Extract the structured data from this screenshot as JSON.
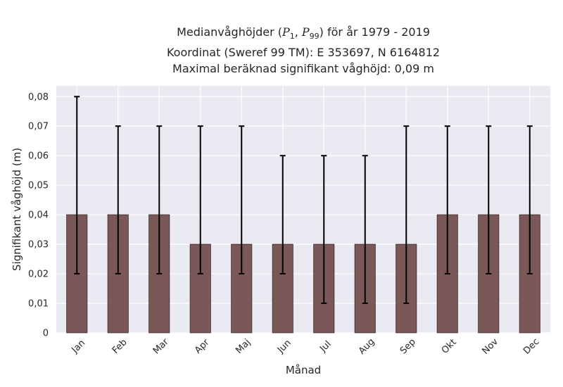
{
  "chart_data": {
    "type": "bar",
    "title_lines": [
      "Medianvåghöjder (P1, P99) för år 1979 - 2019",
      "Koordinat (Sweref 99 TM): E 353697, N 6164812",
      "Maximal beräknad signifikant våghöjd: 0,09 m"
    ],
    "title_parts": {
      "prefix": "Medianvåghöjder (",
      "p1_var": "P",
      "p1_sub": "1",
      "sep": ", ",
      "p99_var": "P",
      "p99_sub": "99",
      "suffix": ") för år 1979 - 2019"
    },
    "xlabel": "Månad",
    "ylabel": "Signifikant våghöjd (m)",
    "categories": [
      "Jan",
      "Feb",
      "Mar",
      "Apr",
      "Maj",
      "Jun",
      "Jul",
      "Aug",
      "Sep",
      "Okt",
      "Nov",
      "Dec"
    ],
    "series": [
      {
        "values": [
          0.04,
          0.04,
          0.04,
          0.03,
          0.03,
          0.03,
          0.03,
          0.03,
          0.03,
          0.04,
          0.04,
          0.04
        ],
        "error_low": [
          0.02,
          0.02,
          0.02,
          0.02,
          0.02,
          0.02,
          0.01,
          0.01,
          0.01,
          0.02,
          0.02,
          0.02
        ],
        "error_high": [
          0.08,
          0.07,
          0.07,
          0.07,
          0.07,
          0.06,
          0.06,
          0.06,
          0.07,
          0.07,
          0.07,
          0.07
        ]
      }
    ],
    "ylim": [
      0,
      0.08
    ],
    "yticks": [
      0,
      0.01,
      0.02,
      0.03,
      0.04,
      0.05,
      0.06,
      0.07,
      0.08
    ],
    "ytick_labels": [
      "0",
      "0,01",
      "0,02",
      "0,03",
      "0,04",
      "0,05",
      "0,06",
      "0,07",
      "0,08"
    ],
    "grid": true,
    "colors": {
      "bar": "#7a5858",
      "bar_edge": "#3a2a2a",
      "plot_background": "#eaeaf2",
      "grid": "#ffffff",
      "error_bar": "#000000"
    }
  }
}
